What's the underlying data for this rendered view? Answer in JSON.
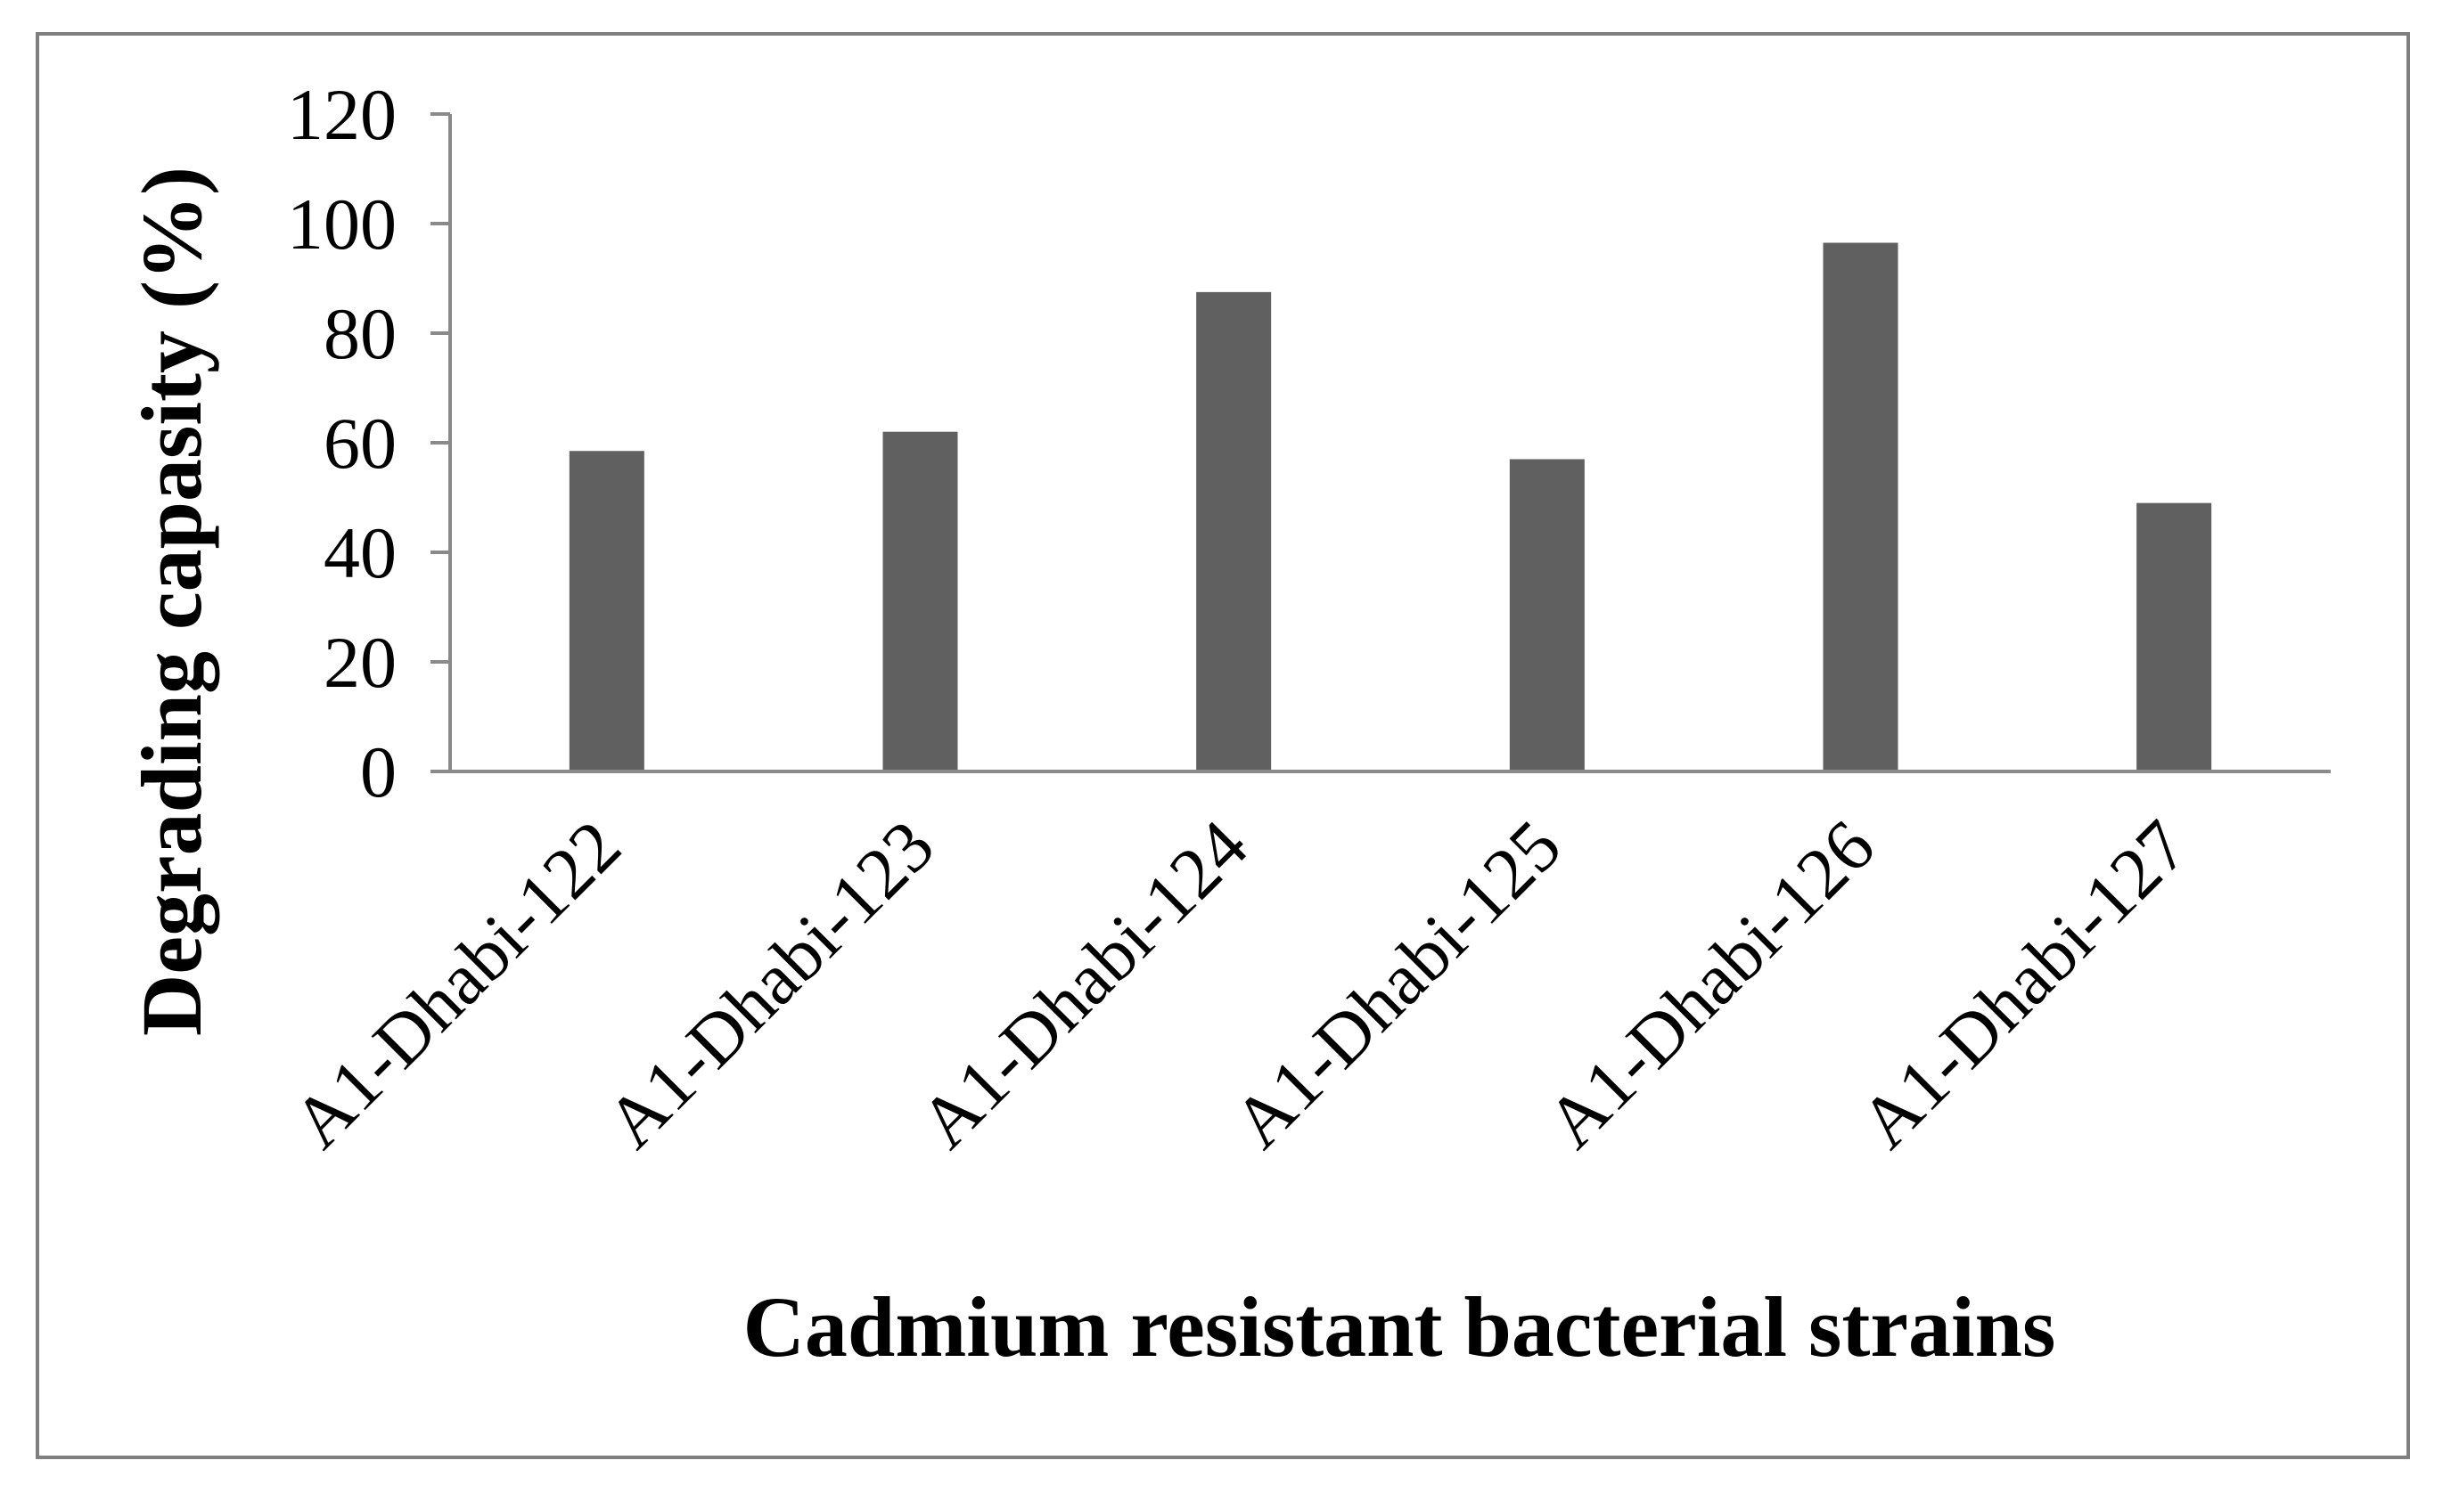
{
  "chart_data": {
    "type": "bar",
    "categories": [
      "A1-Dhabi-122",
      "A1-Dhabi-123",
      "A1-Dhabi-124",
      "A1-Dhabi-125",
      "A1-Dhabi-126",
      "A1-Dhabi-127"
    ],
    "series": [
      {
        "values": [
          58.5,
          62,
          87.5,
          57,
          96.5,
          49
        ]
      }
    ],
    "title": "",
    "xlabel": "Cadmium resistant bacterial strains",
    "ylabel": "Degrading capasity (%)",
    "ylim": [
      0,
      120
    ],
    "yticks": [
      "0",
      "20",
      "40",
      "60",
      "80",
      "100",
      "120"
    ],
    "grid": false,
    "legend": "none",
    "colors": {
      "bar": "#606060",
      "axis": "#8a8a8a",
      "frame": "#7f7f7f",
      "text": "#000000"
    }
  }
}
